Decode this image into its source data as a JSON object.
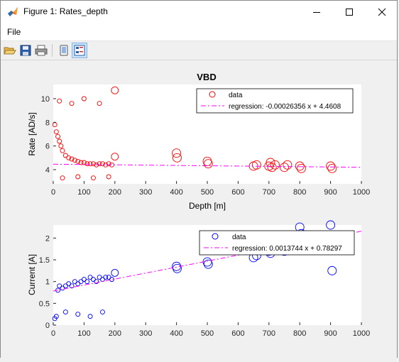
{
  "window": {
    "title": "Figure 1: Rates_depth"
  },
  "menu": {
    "file_label": "File"
  },
  "toolbar": {
    "items": [
      "open-icon",
      "save-icon",
      "print-icon",
      "link-icon",
      "layout-icon"
    ]
  },
  "figure": {
    "suptitle": "VBD",
    "colors": {
      "rate": "#ff0000",
      "current": "#0000ff",
      "regression": "#ff00ff"
    },
    "top_plot": {
      "ylabel": "Rate [AD/s]",
      "xlabel": "Depth [m]",
      "xlim": [
        0,
        1000
      ],
      "ylim": [
        2.8,
        11.2
      ],
      "xticks": [
        "0",
        "100",
        "200",
        "300",
        "400",
        "500",
        "600",
        "700",
        "800",
        "900",
        "1000"
      ],
      "yticks": [
        "4",
        "6",
        "8",
        "10"
      ],
      "legend": {
        "data_label": "data",
        "regression_label": "regression: -0.00026356 x + 4.4608"
      }
    },
    "bottom_plot": {
      "ylabel": "Current [A]",
      "xlabel": "",
      "xlim": [
        0,
        1000
      ],
      "ylim": [
        0,
        2.3
      ],
      "xticks": [
        "0",
        "100",
        "200",
        "300",
        "400",
        "500",
        "600",
        "700",
        "800",
        "900",
        "1000"
      ],
      "yticks": [
        "0",
        "0.5",
        "1",
        "1.5",
        "2"
      ],
      "legend": {
        "data_label": "data",
        "regression_label": "regression: 0.0013744 x + 0.78297"
      }
    }
  },
  "chart_data": [
    {
      "type": "scatter",
      "title": "VBD",
      "xlabel": "Depth [m]",
      "ylabel": "Rate [AD/s]",
      "xlim": [
        0,
        1000
      ],
      "ylim": [
        2.8,
        11.2
      ],
      "legend_position": "top-right",
      "series": [
        {
          "name": "data",
          "x": [
            5,
            10,
            15,
            20,
            25,
            30,
            40,
            50,
            60,
            70,
            80,
            90,
            100,
            110,
            120,
            130,
            140,
            150,
            160,
            170,
            180,
            190,
            200,
            400,
            402,
            500,
            503,
            650,
            660,
            700,
            705,
            710,
            720,
            750,
            760,
            800,
            805,
            900,
            905,
            20,
            60,
            100,
            150,
            200,
            30,
            80,
            130,
            180
          ],
          "y": [
            7.8,
            7.2,
            6.8,
            6.4,
            6.0,
            5.6,
            5.2,
            5.0,
            4.9,
            4.8,
            4.7,
            4.6,
            4.6,
            4.5,
            4.5,
            4.5,
            4.4,
            4.5,
            4.5,
            4.4,
            4.5,
            4.4,
            5.1,
            5.4,
            5.0,
            4.7,
            4.5,
            4.3,
            4.4,
            4.3,
            4.6,
            4.2,
            4.4,
            4.2,
            4.4,
            4.3,
            4.1,
            4.3,
            4.1,
            9.8,
            9.6,
            10.0,
            9.6,
            10.7,
            3.3,
            3.4,
            3.3,
            3.4
          ]
        },
        {
          "name": "regression",
          "x": [
            0,
            1000
          ],
          "y": [
            4.4608,
            4.1972
          ]
        }
      ]
    },
    {
      "type": "scatter",
      "xlabel": "",
      "ylabel": "Current [A]",
      "xlim": [
        0,
        1000
      ],
      "ylim": [
        0,
        2.3
      ],
      "legend_position": "top-right",
      "series": [
        {
          "name": "data",
          "x": [
            5,
            10,
            15,
            20,
            30,
            40,
            50,
            60,
            70,
            80,
            90,
            100,
            110,
            120,
            130,
            140,
            150,
            160,
            170,
            180,
            190,
            200,
            400,
            402,
            500,
            503,
            650,
            660,
            700,
            705,
            710,
            750,
            760,
            800,
            805,
            900,
            905,
            40,
            80,
            120,
            160
          ],
          "y": [
            0.15,
            0.2,
            0.8,
            0.9,
            0.85,
            0.9,
            0.95,
            0.9,
            1.0,
            0.95,
            1.0,
            1.05,
            1.0,
            1.1,
            1.05,
            1.0,
            1.1,
            1.05,
            1.1,
            1.1,
            1.05,
            1.2,
            1.35,
            1.3,
            1.45,
            1.4,
            1.55,
            1.6,
            1.7,
            1.65,
            1.75,
            1.7,
            1.8,
            2.25,
            2.1,
            2.3,
            1.25,
            0.3,
            0.25,
            0.2,
            0.3
          ]
        },
        {
          "name": "regression",
          "x": [
            0,
            1000
          ],
          "y": [
            0.78297,
            2.15737
          ]
        }
      ]
    }
  ]
}
